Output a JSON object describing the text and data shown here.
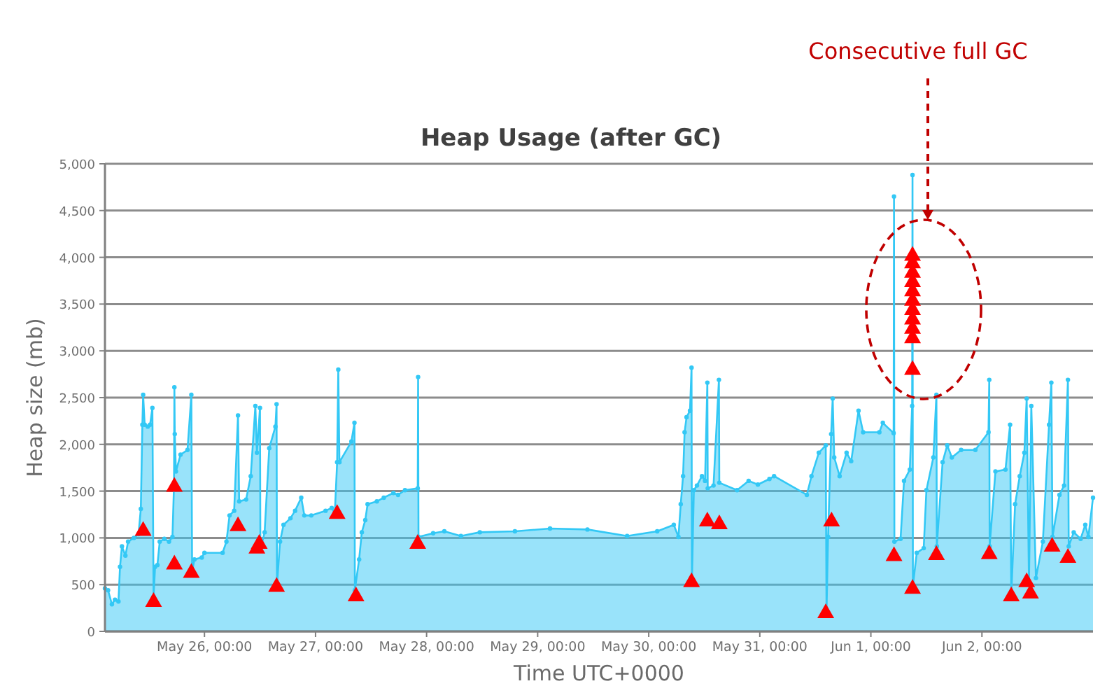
{
  "chart_data": {
    "type": "area",
    "title": "Heap Usage (after GC)",
    "xlabel": "Time UTC+0000",
    "ylabel": "Heap size (mb)",
    "xlim": [
      "--05-25T02:30",
      "--06-03T00:00"
    ],
    "xticks": [
      {
        "value": "--05-26T00:00",
        "label": "May 26, 00:00"
      },
      {
        "value": "--05-27T00:00",
        "label": "May 27, 00:00"
      },
      {
        "value": "--05-28T00:00",
        "label": "May 28, 00:00"
      },
      {
        "value": "--05-29T00:00",
        "label": "May 29, 00:00"
      },
      {
        "value": "--05-30T00:00",
        "label": "May 30, 00:00"
      },
      {
        "value": "--05-31T00:00",
        "label": "May 31, 00:00"
      },
      {
        "value": "--06-01T00:00",
        "label": "Jun 1, 00:00"
      },
      {
        "value": "--06-02T00:00",
        "label": "Jun 2, 00:00"
      }
    ],
    "ylim": [
      0,
      5000
    ],
    "yticks": [
      0,
      {
        "value": 500,
        "label": "500"
      },
      {
        "value": 1000,
        "label": "1,000"
      },
      {
        "value": 1500,
        "label": "1,500"
      },
      {
        "value": 2000,
        "label": "2,000"
      },
      {
        "value": 2500,
        "label": "2,500"
      },
      {
        "value": 3000,
        "label": "3,000"
      },
      {
        "value": 3500,
        "label": "3,500"
      },
      {
        "value": 4000,
        "label": "4,000"
      },
      {
        "value": 4500,
        "label": "4,500"
      },
      {
        "value": 5000,
        "label": "5,000"
      }
    ],
    "grid": "y",
    "annotations": [
      "Consecutive full GC"
    ],
    "series": [
      {
        "color": "#33c8f5",
        "marker": "circle",
        "x": [
          "--05-25T02:30",
          "--05-25T03:10",
          "--05-25T04:00",
          "--05-25T04:40",
          "--05-25T05:25",
          "--05-25T05:45",
          "--05-25T06:10",
          "--05-25T06:55",
          "--05-25T07:30",
          "--05-25T08:45",
          "--05-25T09:45",
          "--05-25T10:15",
          "--05-25T10:35",
          "--05-25T10:45",
          "--05-25T11:05",
          "--05-25T11:45",
          "--05-25T12:15",
          "--05-25T12:45",
          "--05-25T13:00",
          "--05-25T13:20",
          "--05-25T13:50",
          "--05-25T14:20",
          "--05-25T15:20",
          "--05-25T16:20",
          "--05-25T17:05",
          "--05-25T17:25",
          "--05-25T17:30",
          "--05-25T17:35",
          "--05-25T17:50",
          "--05-25T18:50",
          "--05-25T20:20",
          "--05-25T21:10",
          "--05-25T21:20",
          "--05-25T21:50",
          "--05-25T23:25",
          "--05-26T00:00",
          "--05-26T03:55",
          "--05-26T04:45",
          "--05-26T05:25",
          "--05-26T06:25",
          "--05-26T07:15",
          "--05-26T07:30",
          "--05-26T09:00",
          "--05-26T10:00",
          "--05-26T11:00",
          "--05-26T11:20",
          "--05-26T12:00",
          "--05-26T12:05",
          "--05-26T13:00",
          "--05-26T14:00",
          "--05-26T15:20",
          "--05-26T15:35",
          "--05-26T15:40",
          "--05-26T16:20",
          "--05-26T17:05",
          "--05-26T18:35",
          "--05-26T19:35",
          "--05-26T20:55",
          "--05-26T21:35",
          "--05-26T23:05",
          "--05-27T02:10",
          "--05-27T03:30",
          "--05-27T04:10",
          "--05-27T04:40",
          "--05-27T04:55",
          "--05-27T05:10",
          "--05-27T07:45",
          "--05-27T08:25",
          "--05-27T08:30",
          "--05-27T09:25",
          "--05-27T10:00",
          "--05-27T10:45",
          "--05-27T11:15",
          "--05-27T13:15",
          "--05-27T14:45",
          "--05-27T16:50",
          "--05-27T17:50",
          "--05-27T19:20",
          "--05-27T22:05",
          "--05-27T22:10",
          "--05-27T22:15",
          "--05-28T01:25",
          "--05-28T03:50",
          "--05-28T07:25",
          "--05-28T11:30",
          "--05-28T19:05",
          "--05-29T02:40",
          "--05-29T10:45",
          "--05-29T19:20",
          "--05-30T01:50",
          "--05-30T05:25",
          "--05-30T06:25",
          "--05-30T06:55",
          "--05-30T07:25",
          "--05-30T07:45",
          "--05-30T08:10",
          "--05-30T08:55",
          "--05-30T09:15",
          "--05-30T09:20",
          "--05-30T09:45",
          "--05-30T10:25",
          "--05-30T11:30",
          "--05-30T12:10",
          "--05-30T12:40",
          "--05-30T12:45",
          "--05-30T14:00",
          "--05-30T15:10",
          "--05-30T15:15",
          "--05-30T19:05",
          "--05-30T21:35",
          "--05-30T23:35",
          "--05-31T02:05",
          "--05-31T03:05",
          "--05-31T10:10",
          "--05-31T11:10",
          "--05-31T12:45",
          "--05-31T14:15",
          "--05-31T14:25",
          "--05-31T14:45",
          "--05-31T15:25",
          "--05-31T15:45",
          "--05-31T16:05",
          "--05-31T17:15",
          "--05-31T18:45",
          "--05-31T19:45",
          "--05-31T21:20",
          "--05-31T22:20",
          "--06-01T01:50",
          "--06-01T02:35",
          "--06-01T04:55",
          "--06-01T05:00",
          "--06-01T05:05",
          "--06-01T06:25",
          "--06-01T07:10",
          "--06-01T08:25",
          "--06-01T08:55",
          "--06-01T09:00",
          "--06-01T09:05",
          "--06-01T09:55",
          "--06-01T11:25",
          "--06-01T12:00",
          "--06-01T13:30",
          "--06-01T14:10",
          "--06-01T14:15",
          "--06-01T15:30",
          "--06-01T16:30",
          "--06-01T17:30",
          "--06-01T19:30",
          "--06-01T22:35",
          "--06-02T01:25",
          "--06-02T01:35",
          "--06-02T01:40",
          "--06-02T02:55",
          "--06-02T05:05",
          "--06-02T06:05",
          "--06-02T06:20",
          "--06-02T07:10",
          "--06-02T08:10",
          "--06-02T09:10",
          "--06-02T09:40",
          "--06-02T10:10",
          "--06-02T10:40",
          "--06-02T11:40",
          "--06-02T13:10",
          "--06-02T14:30",
          "--06-02T15:00",
          "--06-02T15:15",
          "--06-02T16:45",
          "--06-02T17:45",
          "--06-02T18:35",
          "--06-02T18:45",
          "--06-02T19:50",
          "--06-02T21:20",
          "--06-02T22:20",
          "--06-02T23:00",
          "--06-03T00:00"
        ],
        "values": [
          460,
          440,
          290,
          340,
          320,
          690,
          910,
          810,
          960,
          1000,
          1040,
          1310,
          2210,
          2530,
          2210,
          2190,
          2210,
          2390,
          370,
          690,
          710,
          960,
          990,
          960,
          1010,
          1560,
          2610,
          2110,
          1710,
          1890,
          1940,
          2530,
          640,
          770,
          790,
          840,
          840,
          960,
          1240,
          1290,
          2310,
          1390,
          1410,
          1660,
          2410,
          1910,
          2390,
          870,
          1060,
          1960,
          2190,
          2430,
          490,
          960,
          1140,
          1210,
          1290,
          1430,
          1240,
          1240,
          1290,
          1320,
          1260,
          1810,
          2800,
          1810,
          2030,
          2230,
          440,
          770,
          1060,
          1190,
          1360,
          1390,
          1430,
          1480,
          1460,
          1510,
          1530,
          2720,
          1010,
          1050,
          1070,
          1020,
          1060,
          1070,
          1100,
          1090,
          1020,
          1070,
          1140,
          1010,
          1360,
          1660,
          2130,
          2290,
          2360,
          2820,
          540,
          1510,
          1560,
          1660,
          1610,
          2660,
          1530,
          1560,
          2690,
          1590,
          1510,
          1610,
          1570,
          1630,
          1660,
          1460,
          1660,
          1910,
          1990,
          200,
          1010,
          2110,
          2490,
          1860,
          1660,
          1910,
          1820,
          2360,
          2130,
          2130,
          2230,
          2120,
          4650,
          960,
          990,
          1610,
          1730,
          2410,
          4880,
          490,
          840,
          890,
          1510,
          1860,
          2530,
          910,
          1810,
          1990,
          1860,
          1940,
          1940,
          2130,
          2690,
          910,
          1710,
          1730,
          2210,
          390,
          1360,
          1660,
          1910,
          2490,
          510,
          2410,
          570,
          960,
          2210,
          2660,
          1010,
          1460,
          1560,
          2690,
          910,
          1060,
          990,
          1140,
          1010,
          1430
        ]
      },
      {
        "type": "scatter",
        "color": "#ff0000",
        "marker": "triangle",
        "x": [
          "--05-25T10:45",
          "--05-25T13:00",
          "--05-25T17:30",
          "--05-25T17:30",
          "--05-25T21:10",
          "--05-26T07:15",
          "--05-26T11:20",
          "--05-26T11:50",
          "--05-26T15:35",
          "--05-27T04:40",
          "--05-27T08:45",
          "--05-27T22:05",
          "--05-30T09:15",
          "--05-30T12:40",
          "--05-30T15:15",
          "--05-31T14:15",
          "--05-31T15:30",
          "--06-01T05:00",
          "--06-01T09:00",
          "--06-01T09:00",
          "--06-01T09:00",
          "--06-01T09:00",
          "--06-01T09:00",
          "--06-01T09:00",
          "--06-01T09:00",
          "--06-01T09:00",
          "--06-01T09:00",
          "--06-01T09:00",
          "--06-01T09:00",
          "--06-01T09:00",
          "--06-01T14:10",
          "--06-02T01:35",
          "--06-02T06:20",
          "--06-02T09:40",
          "--06-02T10:30",
          "--06-02T15:10",
          "--06-02T18:35"
        ],
        "values": [
          1090,
          330,
          1560,
          730,
          640,
          1140,
          900,
          950,
          490,
          1270,
          390,
          950,
          540,
          1190,
          1160,
          210,
          1190,
          820,
          470,
          2810,
          3150,
          3250,
          3350,
          3450,
          3550,
          3650,
          3750,
          3850,
          3950,
          4030,
          830,
          840,
          390,
          540,
          420,
          920,
          800
        ]
      }
    ]
  }
}
